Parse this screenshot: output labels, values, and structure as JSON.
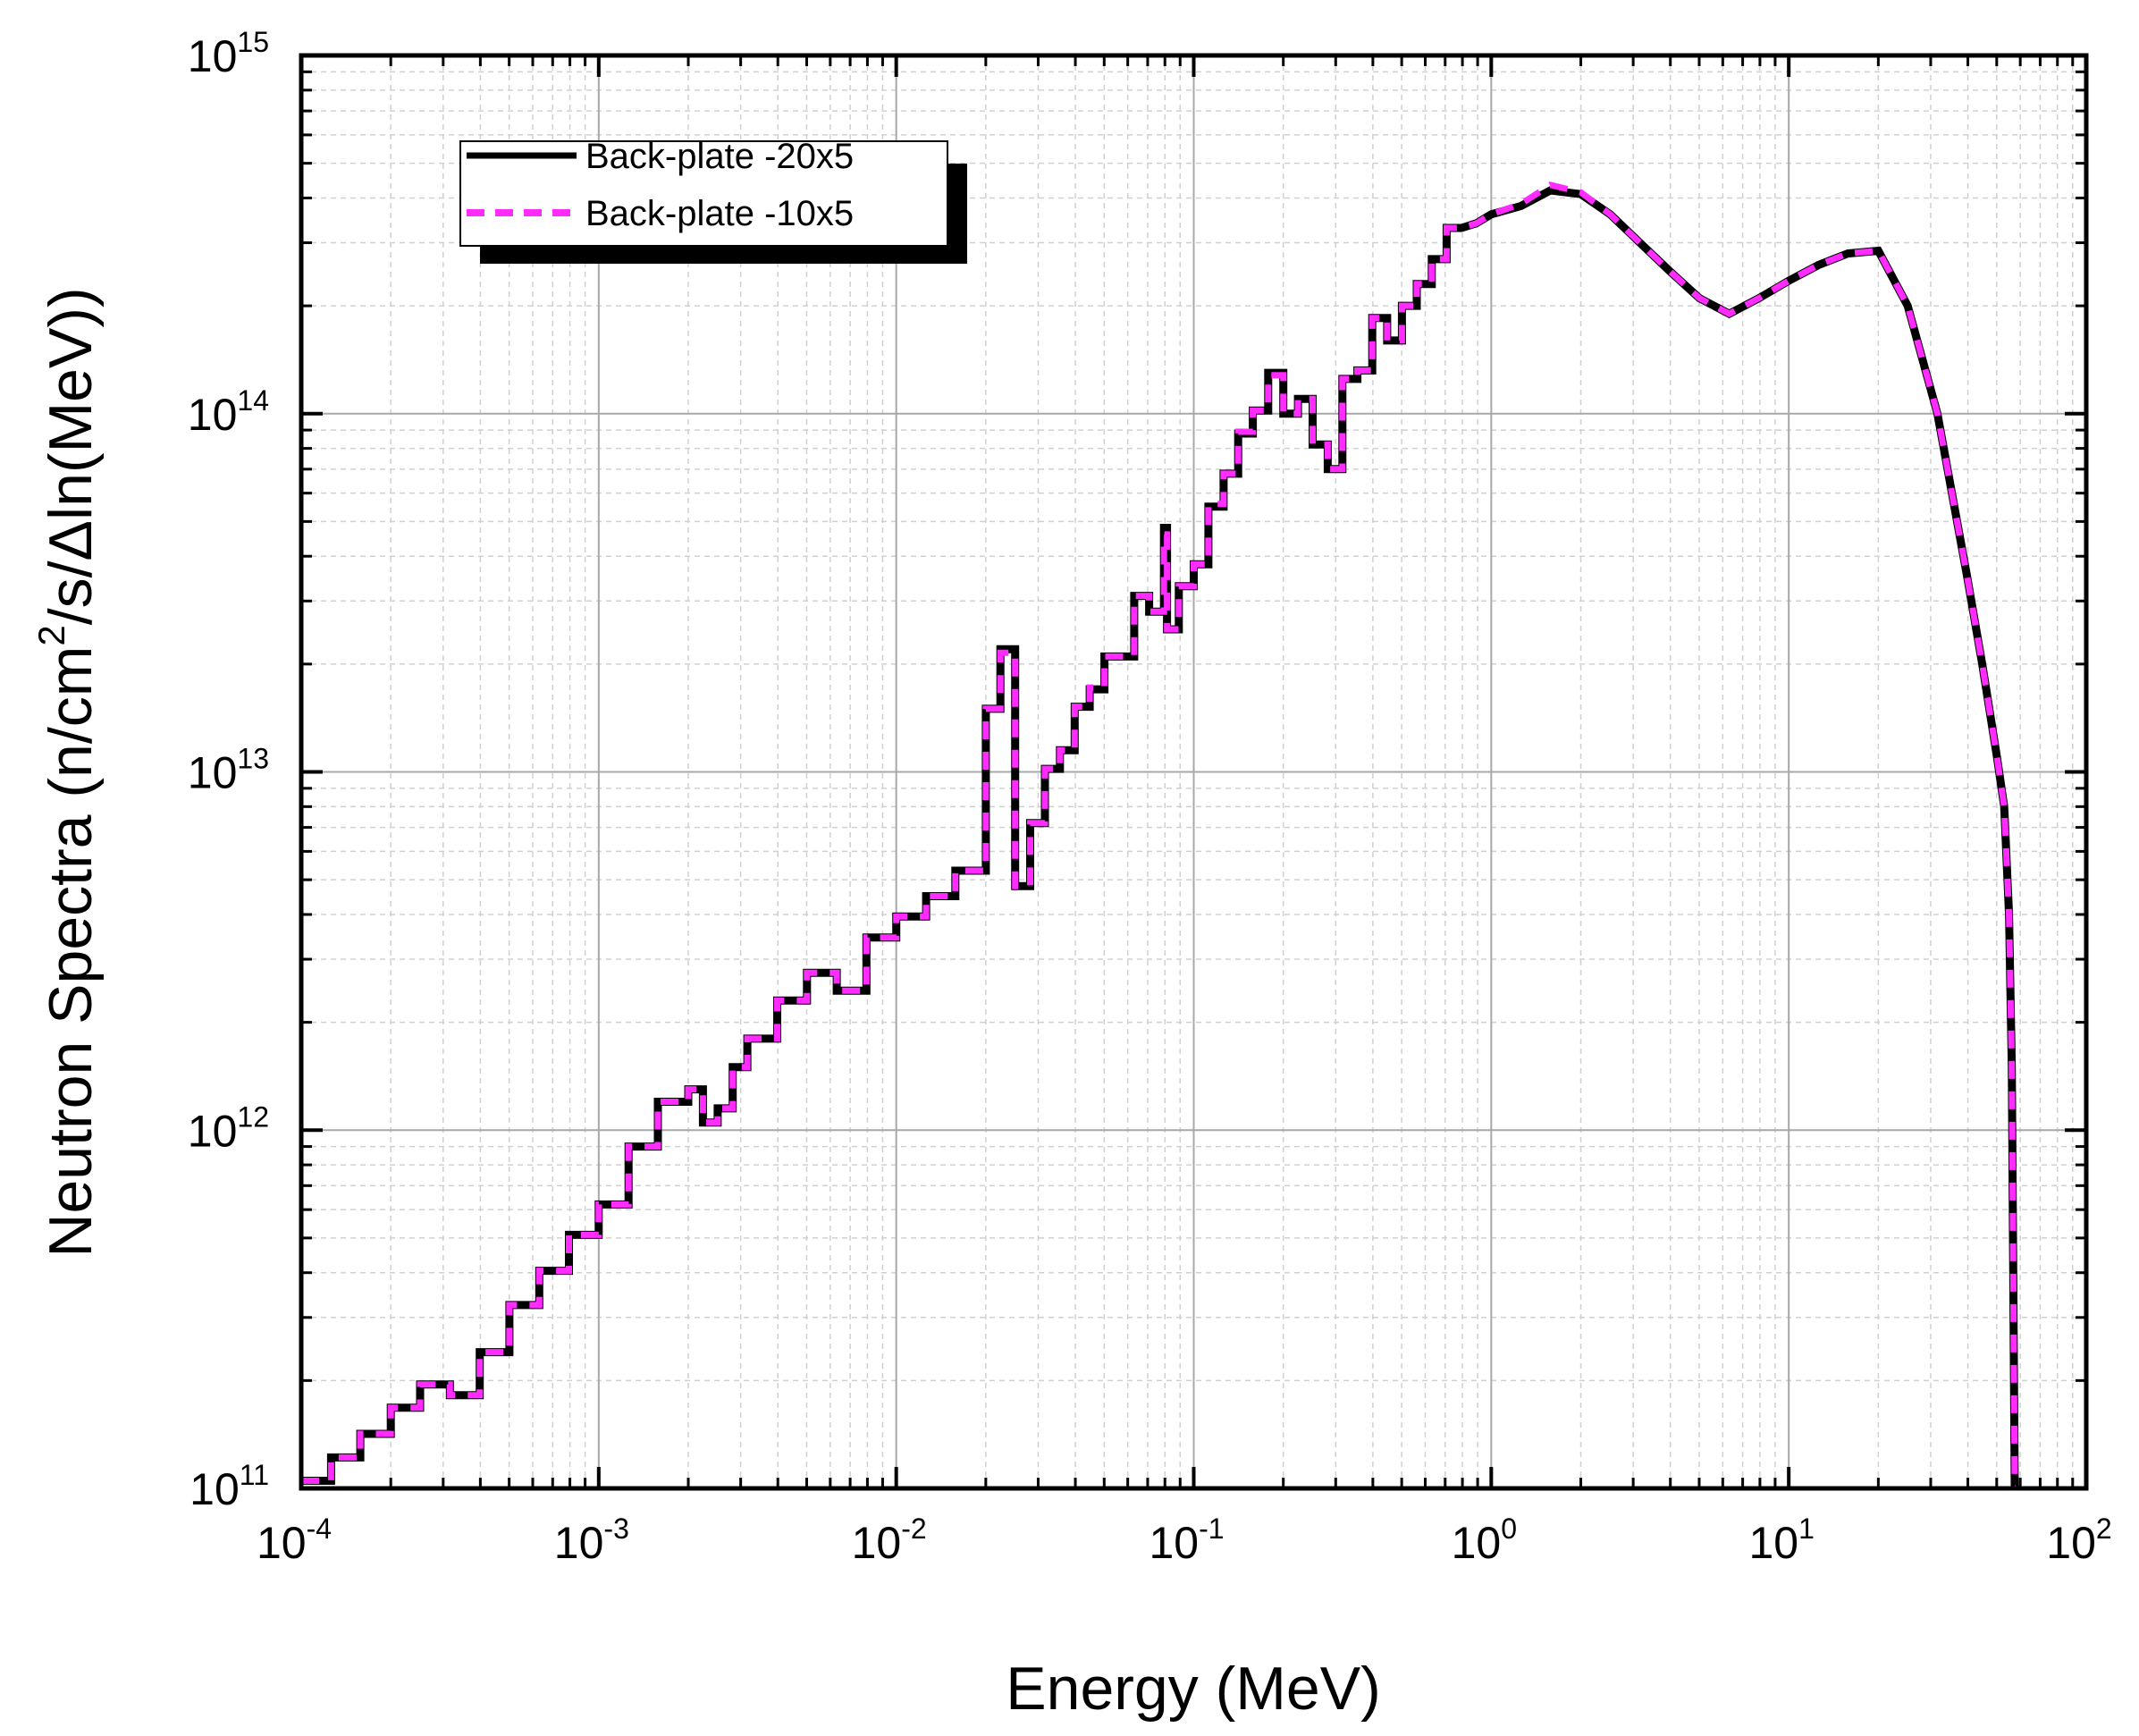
{
  "chart_data": {
    "type": "line",
    "title": "",
    "xlabel": "Energy (MeV)",
    "ylabel": {
      "part1": "Neutron Spectra (n/cm",
      "sup": "2",
      "part2": "/s/Δln(MeV))"
    },
    "xscale": "log",
    "yscale": "log",
    "xlim": [
      0.0001,
      100
    ],
    "ylim": [
      100000000000.0,
      1000000000000000.0
    ],
    "grid": true,
    "legend_position": "top-left",
    "x_ticks": [
      {
        "base": "10",
        "exp": "-4"
      },
      {
        "base": "10",
        "exp": "-3"
      },
      {
        "base": "10",
        "exp": "-2"
      },
      {
        "base": "10",
        "exp": "-1"
      },
      {
        "base": "10",
        "exp": "0"
      },
      {
        "base": "10",
        "exp": "1"
      },
      {
        "base": "10",
        "exp": "2"
      }
    ],
    "y_ticks": [
      {
        "base": "10",
        "exp": "11"
      },
      {
        "base": "10",
        "exp": "12"
      },
      {
        "base": "10",
        "exp": "13"
      },
      {
        "base": "10",
        "exp": "14"
      },
      {
        "base": "10",
        "exp": "15"
      }
    ],
    "series": [
      {
        "name": "Back-plate -20x5",
        "color": "#000000",
        "style": "solid",
        "x": [
          0.0001,
          0.000126,
          0.000126,
          0.000158,
          0.000158,
          0.0002,
          0.0002,
          0.000251,
          0.000251,
          0.000316,
          0.000316,
          0.000398,
          0.000398,
          0.000501,
          0.000501,
          0.000631,
          0.000631,
          0.000794,
          0.000794,
          0.001,
          0.001,
          0.00126,
          0.00126,
          0.00158,
          0.00158,
          0.002,
          0.002,
          0.00224,
          0.00224,
          0.00251,
          0.00251,
          0.00282,
          0.00282,
          0.00316,
          0.00316,
          0.00398,
          0.00398,
          0.00501,
          0.00501,
          0.00631,
          0.00631,
          0.00794,
          0.00794,
          0.01,
          0.01,
          0.0126,
          0.0126,
          0.0158,
          0.0158,
          0.02,
          0.02,
          0.0224,
          0.0224,
          0.0251,
          0.0251,
          0.0282,
          0.0282,
          0.0316,
          0.0316,
          0.0355,
          0.0355,
          0.0398,
          0.0398,
          0.0447,
          0.0447,
          0.0501,
          0.0501,
          0.0631,
          0.0631,
          0.0708,
          0.0708,
          0.0794,
          0.0794,
          0.0813,
          0.0813,
          0.0891,
          0.0891,
          0.1,
          0.1,
          0.112,
          0.112,
          0.126,
          0.126,
          0.141,
          0.141,
          0.158,
          0.158,
          0.178,
          0.178,
          0.2,
          0.2,
          0.224,
          0.224,
          0.251,
          0.251,
          0.282,
          0.282,
          0.316,
          0.316,
          0.355,
          0.355,
          0.398,
          0.398,
          0.447,
          0.447,
          0.501,
          0.501,
          0.562,
          0.562,
          0.631,
          0.631,
          0.708,
          0.708,
          0.794,
          0.891,
          1.0,
          1.26,
          1.58,
          2.0,
          2.51,
          3.16,
          3.98,
          5.01,
          6.31,
          7.94,
          10.0,
          12.6,
          15.8,
          20.0,
          25.1,
          31.6,
          39.8,
          44.7,
          50.1,
          53.0,
          55.0,
          56.2,
          57.5,
          58.0
        ],
        "y": [
          105000000000.0,
          105000000000.0,
          122000000000.0,
          122000000000.0,
          142000000000.0,
          142000000000.0,
          168000000000.0,
          168000000000.0,
          195000000000.0,
          195000000000.0,
          182000000000.0,
          182000000000.0,
          240000000000.0,
          240000000000.0,
          325000000000.0,
          325000000000.0,
          405000000000.0,
          405000000000.0,
          510000000000.0,
          510000000000.0,
          620000000000.0,
          620000000000.0,
          900000000000.0,
          900000000000.0,
          1200000000000.0,
          1200000000000.0,
          1300000000000.0,
          1300000000000.0,
          1050000000000.0,
          1050000000000.0,
          1150000000000.0,
          1150000000000.0,
          1500000000000.0,
          1500000000000.0,
          1800000000000.0,
          1800000000000.0,
          2300000000000.0,
          2300000000000.0,
          2750000000000.0,
          2750000000000.0,
          2450000000000.0,
          2450000000000.0,
          3450000000000.0,
          3450000000000.0,
          3950000000000.0,
          3950000000000.0,
          4500000000000.0,
          4500000000000.0,
          5300000000000.0,
          5300000000000.0,
          15000000000000.0,
          15000000000000.0,
          22000000000000.0,
          22000000000000.0,
          4800000000000.0,
          4800000000000.0,
          7200000000000.0,
          7200000000000.0,
          10200000000000.0,
          10200000000000.0,
          11500000000000.0,
          11500000000000.0,
          15200000000000.0,
          15200000000000.0,
          17000000000000.0,
          17000000000000.0,
          21000000000000.0,
          21000000000000.0,
          31000000000000.0,
          31000000000000.0,
          28000000000000.0,
          28000000000000.0,
          48000000000000.0,
          48000000000000.0,
          25000000000000.0,
          25000000000000.0,
          33000000000000.0,
          33000000000000.0,
          38000000000000.0,
          38000000000000.0,
          55000000000000.0,
          55000000000000.0,
          68000000000000.0,
          68000000000000.0,
          88000000000000.0,
          88000000000000.0,
          102000000000000.0,
          102000000000000.0,
          130000000000000.0,
          130000000000000.0,
          100000000000000.0,
          100000000000000.0,
          110000000000000.0,
          110000000000000.0,
          82000000000000.0,
          82000000000000.0,
          70000000000000.0,
          70000000000000.0,
          125000000000000.0,
          125000000000000.0,
          132000000000000.0,
          132000000000000.0,
          185000000000000.0,
          185000000000000.0,
          160000000000000.0,
          160000000000000.0,
          200000000000000.0,
          200000000000000.0,
          230000000000000.0,
          230000000000000.0,
          270000000000000.0,
          270000000000000.0,
          330000000000000.0,
          330000000000000.0,
          340000000000000.0,
          360000000000000.0,
          380000000000000.0,
          420000000000000.0,
          410000000000000.0,
          360000000000000.0,
          300000000000000.0,
          250000000000000.0,
          210000000000000.0,
          190000000000000.0,
          210000000000000.0,
          235000000000000.0,
          260000000000000.0,
          280000000000000.0,
          285000000000000.0,
          200000000000000.0,
          100000000000000.0,
          35000000000000.0,
          20000000000000.0,
          11000000000000.0,
          8000000000000.0,
          4000000000000.0,
          1500000000000.0,
          100000000000.0,
          100000000000.0
        ]
      },
      {
        "name": "Back-plate -10x5",
        "color": "#ff2bff",
        "style": "dashed",
        "x": [
          0.0001,
          0.000126,
          0.000126,
          0.000158,
          0.000158,
          0.0002,
          0.0002,
          0.000251,
          0.000251,
          0.000316,
          0.000316,
          0.000398,
          0.000398,
          0.000501,
          0.000501,
          0.000631,
          0.000631,
          0.000794,
          0.000794,
          0.001,
          0.001,
          0.00126,
          0.00126,
          0.00158,
          0.00158,
          0.002,
          0.002,
          0.00224,
          0.00224,
          0.00251,
          0.00251,
          0.00282,
          0.00282,
          0.00316,
          0.00316,
          0.00398,
          0.00398,
          0.00501,
          0.00501,
          0.00631,
          0.00631,
          0.00794,
          0.00794,
          0.01,
          0.01,
          0.0126,
          0.0126,
          0.0158,
          0.0158,
          0.02,
          0.02,
          0.0224,
          0.0224,
          0.0251,
          0.0251,
          0.0282,
          0.0282,
          0.0316,
          0.0316,
          0.0355,
          0.0355,
          0.0398,
          0.0398,
          0.0447,
          0.0447,
          0.0501,
          0.0501,
          0.0631,
          0.0631,
          0.0708,
          0.0708,
          0.0794,
          0.0794,
          0.0813,
          0.0813,
          0.0891,
          0.0891,
          0.1,
          0.1,
          0.112,
          0.112,
          0.126,
          0.126,
          0.141,
          0.141,
          0.158,
          0.158,
          0.178,
          0.178,
          0.2,
          0.2,
          0.224,
          0.224,
          0.251,
          0.251,
          0.282,
          0.282,
          0.316,
          0.316,
          0.355,
          0.355,
          0.398,
          0.398,
          0.447,
          0.447,
          0.501,
          0.501,
          0.562,
          0.562,
          0.631,
          0.631,
          0.708,
          0.708,
          0.794,
          0.891,
          1.0,
          1.26,
          1.58,
          2.0,
          2.51,
          3.16,
          3.98,
          5.01,
          6.31,
          7.94,
          10.0,
          12.6,
          15.8,
          20.0,
          25.1,
          31.6,
          39.8,
          44.7,
          50.1,
          53.0,
          55.0,
          56.2,
          57.5,
          58.0
        ],
        "y": [
          105000000000.0,
          105000000000.0,
          122000000000.0,
          122000000000.0,
          142000000000.0,
          142000000000.0,
          168000000000.0,
          168000000000.0,
          195000000000.0,
          195000000000.0,
          182000000000.0,
          182000000000.0,
          240000000000.0,
          240000000000.0,
          325000000000.0,
          325000000000.0,
          405000000000.0,
          405000000000.0,
          510000000000.0,
          510000000000.0,
          620000000000.0,
          620000000000.0,
          900000000000.0,
          900000000000.0,
          1200000000000.0,
          1200000000000.0,
          1300000000000.0,
          1300000000000.0,
          1050000000000.0,
          1050000000000.0,
          1150000000000.0,
          1150000000000.0,
          1500000000000.0,
          1500000000000.0,
          1800000000000.0,
          1800000000000.0,
          2300000000000.0,
          2300000000000.0,
          2750000000000.0,
          2750000000000.0,
          2450000000000.0,
          2450000000000.0,
          3450000000000.0,
          3450000000000.0,
          3950000000000.0,
          3950000000000.0,
          4500000000000.0,
          4500000000000.0,
          5300000000000.0,
          5300000000000.0,
          15000000000000.0,
          15000000000000.0,
          21500000000000.0,
          21500000000000.0,
          4800000000000.0,
          4800000000000.0,
          7200000000000.0,
          7200000000000.0,
          10200000000000.0,
          10200000000000.0,
          11500000000000.0,
          11500000000000.0,
          15200000000000.0,
          15200000000000.0,
          17200000000000.0,
          17200000000000.0,
          21000000000000.0,
          21000000000000.0,
          31000000000000.0,
          31000000000000.0,
          28000000000000.0,
          28000000000000.0,
          46000000000000.0,
          46000000000000.0,
          25000000000000.0,
          25000000000000.0,
          33000000000000.0,
          33000000000000.0,
          38000000000000.0,
          38000000000000.0,
          56000000000000.0,
          56000000000000.0,
          68000000000000.0,
          68000000000000.0,
          89000000000000.0,
          89000000000000.0,
          102000000000000.0,
          102000000000000.0,
          128000000000000.0,
          128000000000000.0,
          100000000000000.0,
          100000000000000.0,
          110000000000000.0,
          110000000000000.0,
          82000000000000.0,
          82000000000000.0,
          70000000000000.0,
          70000000000000.0,
          125000000000000.0,
          125000000000000.0,
          132000000000000.0,
          132000000000000.0,
          185000000000000.0,
          185000000000000.0,
          160000000000000.0,
          160000000000000.0,
          200000000000000.0,
          200000000000000.0,
          230000000000000.0,
          230000000000000.0,
          270000000000000.0,
          270000000000000.0,
          330000000000000.0,
          330000000000000.0,
          340000000000000.0,
          360000000000000.0,
          385000000000000.0,
          435000000000000.0,
          415000000000000.0,
          360000000000000.0,
          300000000000000.0,
          250000000000000.0,
          210000000000000.0,
          190000000000000.0,
          210000000000000.0,
          235000000000000.0,
          260000000000000.0,
          280000000000000.0,
          285000000000000.0,
          200000000000000.0,
          100000000000000.0,
          35000000000000.0,
          20000000000000.0,
          11000000000000.0,
          8000000000000.0,
          4000000000000.0,
          1500000000000.0,
          100000000000.0,
          100000000000.0
        ]
      }
    ]
  }
}
